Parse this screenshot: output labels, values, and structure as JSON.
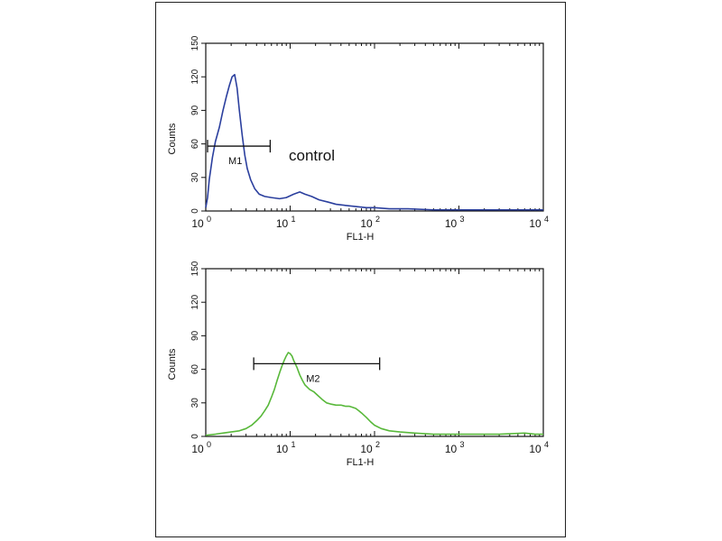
{
  "chart_data": [
    {
      "type": "line",
      "xscale": "log",
      "xlim": [
        1,
        10000
      ],
      "ylim": [
        0,
        150
      ],
      "xlabel": "FL1-H",
      "ylabel": "Counts",
      "x_ticks": [
        {
          "base": "10",
          "exp": "0"
        },
        {
          "base": "10",
          "exp": "1"
        },
        {
          "base": "10",
          "exp": "2"
        },
        {
          "base": "10",
          "exp": "3"
        },
        {
          "base": "10",
          "exp": "4"
        }
      ],
      "y_ticks": [
        "0",
        "30",
        "60",
        "90",
        "120",
        "150"
      ],
      "annotation": "control",
      "color": "#2b3f9e",
      "marker": {
        "label": "M1",
        "x_start": 1.05,
        "x_end": 5.8,
        "y": 58
      },
      "series": [
        {
          "x": [
            1.0,
            1.05,
            1.1,
            1.2,
            1.3,
            1.45,
            1.6,
            1.75,
            1.9,
            2.05,
            2.2,
            2.35,
            2.5,
            2.7,
            2.9,
            3.1,
            3.4,
            3.8,
            4.3,
            5.0,
            6.0,
            7.5,
            9.0,
            11.0,
            13.0,
            15.0,
            18.0,
            22.0,
            28.0,
            35.0,
            45.0,
            60.0,
            80.0,
            100.0,
            150.0,
            250.0,
            500.0,
            1000.0,
            3000.0,
            10000.0
          ],
          "y": [
            3,
            12,
            28,
            48,
            62,
            75,
            90,
            102,
            112,
            120,
            122,
            110,
            90,
            68,
            50,
            38,
            28,
            20,
            15,
            13,
            12,
            11,
            12,
            15,
            17,
            15,
            13,
            10,
            8,
            6,
            5,
            4,
            3,
            3,
            2,
            2,
            1,
            1,
            1,
            1
          ]
        }
      ]
    },
    {
      "type": "line",
      "xscale": "log",
      "xlim": [
        1,
        10000
      ],
      "ylim": [
        0,
        150
      ],
      "xlabel": "FL1-H",
      "ylabel": "Counts",
      "x_ticks": [
        {
          "base": "10",
          "exp": "0"
        },
        {
          "base": "10",
          "exp": "1"
        },
        {
          "base": "10",
          "exp": "2"
        },
        {
          "base": "10",
          "exp": "3"
        },
        {
          "base": "10",
          "exp": "4"
        }
      ],
      "y_ticks": [
        "0",
        "30",
        "60",
        "90",
        "120",
        "150"
      ],
      "color": "#58b83a",
      "marker": {
        "label": "M2",
        "x_start": 3.7,
        "x_end": 115,
        "y": 65
      },
      "series": [
        {
          "x": [
            1.0,
            1.3,
            1.6,
            2.0,
            2.5,
            3.0,
            3.5,
            4.0,
            4.5,
            5.0,
            5.5,
            6.0,
            6.5,
            7.0,
            7.5,
            8.0,
            8.5,
            9.0,
            9.5,
            10.0,
            10.5,
            11.0,
            12.0,
            13.0,
            14.0,
            15.0,
            17.0,
            19.0,
            21.0,
            24.0,
            27.0,
            30.0,
            35.0,
            40.0,
            45.0,
            50.0,
            55.0,
            60.0,
            65.0,
            70.0,
            80.0,
            90.0,
            100.0,
            120.0,
            150.0,
            200.0,
            300.0,
            500.0,
            1000.0,
            3000.0,
            6000.0,
            8000.0,
            10000.0
          ],
          "y": [
            1,
            2,
            3,
            4,
            5,
            7,
            10,
            14,
            18,
            23,
            28,
            35,
            42,
            50,
            57,
            63,
            68,
            72,
            75,
            74,
            72,
            68,
            62,
            55,
            50,
            46,
            42,
            40,
            37,
            33,
            30,
            29,
            28,
            28,
            27,
            27,
            26,
            25,
            23,
            21,
            17,
            13,
            10,
            7,
            5,
            4,
            3,
            2,
            2,
            2,
            3,
            2,
            2
          ]
        }
      ]
    }
  ]
}
